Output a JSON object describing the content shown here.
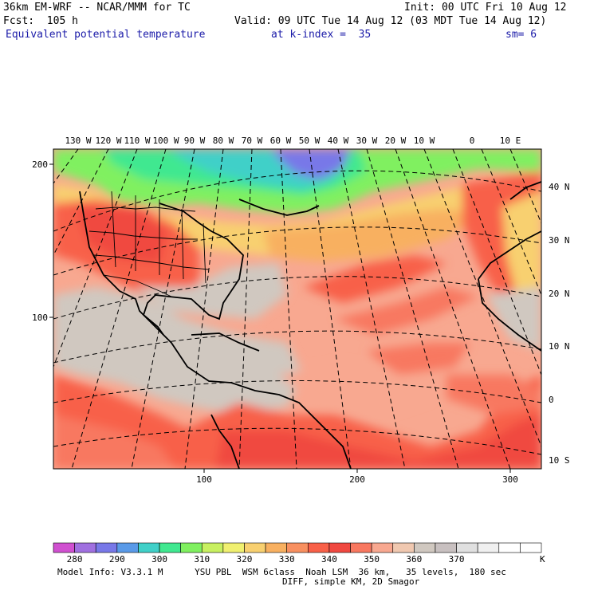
{
  "header": {
    "line1_left": "36km EM-WRF -- NCAR/MMM for TC",
    "line1_right": "Init: 00 UTC Fri 10 Aug 12",
    "line2_left": "Fcst:  105 h",
    "line2_right": "Valid: 09 UTC Tue 14 Aug 12 (03 MDT Tue 14 Aug 12)",
    "line3_field": "Equivalent potential temperature",
    "line3_level": "at k-index =  35",
    "line3_sm": "sm= 6"
  },
  "map": {
    "lon_labels": [
      "130 W",
      "120 W",
      "110 W",
      "100 W",
      "90 W",
      "80 W",
      "70 W",
      "60 W",
      "50 W",
      "40 W",
      "30 W",
      "20 W",
      "10 W",
      "0",
      "10 E"
    ],
    "lat_labels": [
      "40 N",
      "30 N",
      "20 N",
      "10 N",
      "0",
      "10 S"
    ],
    "grid_x_labels": [
      "100",
      "200",
      "300"
    ],
    "grid_y_labels": [
      "200",
      "100"
    ]
  },
  "colorbar": {
    "tick_labels": [
      "280",
      "290",
      "300",
      "310",
      "320",
      "330",
      "340",
      "350",
      "360",
      "370"
    ],
    "units": "K",
    "colors": [
      "#d050d0",
      "#a070e0",
      "#7878e8",
      "#5a9ae8",
      "#40d0c8",
      "#40e890",
      "#80f060",
      "#c8f060",
      "#f0f070",
      "#f8d070",
      "#f8b060",
      "#f89060",
      "#f86048",
      "#f04840",
      "#f87860",
      "#f8a890",
      "#f0c8b0",
      "#d0c8c0",
      "#c8c0c0",
      "#e0e0e0",
      "#f0f0f0",
      "#ffffff",
      "#ffffff"
    ]
  },
  "footer": {
    "line1": "Model Info: V3.3.1 M      YSU PBL  WSM 6class  Noah LSM  36 km,   35 levels,  180 sec",
    "line2": "DIFF, simple KM, 2D Smagor"
  }
}
